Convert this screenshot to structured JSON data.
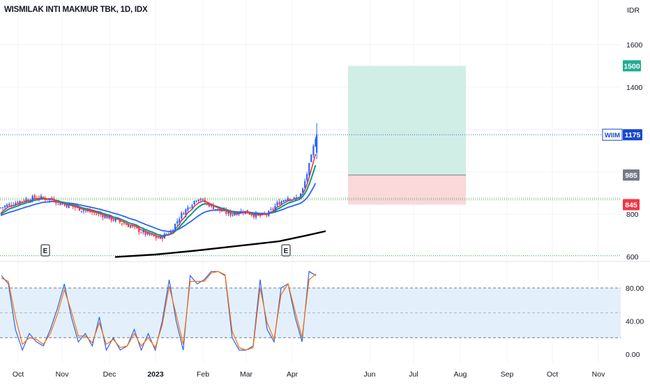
{
  "header": {
    "title": "WISMILAK INTI MAKMUR TBK, 1D, IDX"
  },
  "price_axis": {
    "currency": "IDR",
    "ticks": [
      "1600",
      "1400",
      "800",
      "600"
    ]
  },
  "price_labels": {
    "target": "1500",
    "symbol": "WIIM",
    "last": "1175",
    "entry": "985",
    "stop": "845"
  },
  "oscillator_axis": {
    "ticks": [
      "80.00",
      "40.00",
      "0.00"
    ]
  },
  "time_axis": {
    "ticks": [
      "Oct",
      "Nov",
      "Dec",
      "2023",
      "Feb",
      "Mar",
      "Apr",
      "Jun",
      "Jul",
      "Aug",
      "Sep",
      "Oct",
      "Nov"
    ]
  },
  "event_markers": [
    "E",
    "E"
  ],
  "colors": {
    "up": "#2962ff",
    "down": "#f23645",
    "ema_fast": "#f23645",
    "ema_mid": "#089981",
    "ema_slow": "#2962ff",
    "ma_long": "#000000",
    "target_zone": "#d1eee6",
    "stop_zone": "#fbd8da",
    "target_badge": "#22ab94",
    "stop_badge": "#f23645",
    "entry_badge": "#787b86",
    "osc_k": "#2962ff",
    "osc_d": "#ff6d00",
    "osc_band": "#e3f0fc"
  },
  "chart_data": [
    {
      "type": "candlestick",
      "title": "WISMILAK INTI MAKMUR TBK, 1D, IDX",
      "ylabel": "IDR",
      "ylim": [
        590,
        1660
      ],
      "x_range": [
        "2022-09-20",
        "2023-11-30"
      ],
      "last_price": 1175,
      "position": {
        "target": 1500,
        "entry": 985,
        "stop": 845
      },
      "horizontal_levels": [
        1175,
        875,
        875,
        605
      ],
      "samples": [
        {
          "date": "2022-09-20",
          "close": 830
        },
        {
          "date": "2022-10-03",
          "close": 860
        },
        {
          "date": "2022-10-15",
          "close": 880
        },
        {
          "date": "2022-10-27",
          "close": 870
        },
        {
          "date": "2022-11-01",
          "close": 850
        },
        {
          "date": "2022-11-10",
          "close": 835
        },
        {
          "date": "2022-11-20",
          "close": 815
        },
        {
          "date": "2022-12-01",
          "close": 795
        },
        {
          "date": "2022-12-10",
          "close": 770
        },
        {
          "date": "2022-12-20",
          "close": 745
        },
        {
          "date": "2023-01-01",
          "close": 705
        },
        {
          "date": "2023-01-10",
          "close": 685
        },
        {
          "date": "2023-01-18",
          "close": 720
        },
        {
          "date": "2023-01-25",
          "close": 795
        },
        {
          "date": "2023-02-01",
          "close": 845
        },
        {
          "date": "2023-02-06",
          "close": 880
        },
        {
          "date": "2023-02-10",
          "close": 860
        },
        {
          "date": "2023-02-20",
          "close": 820
        },
        {
          "date": "2023-03-01",
          "close": 800
        },
        {
          "date": "2023-03-10",
          "close": 815
        },
        {
          "date": "2023-03-20",
          "close": 790
        },
        {
          "date": "2023-03-27",
          "close": 800
        },
        {
          "date": "2023-04-03",
          "close": 850
        },
        {
          "date": "2023-04-10",
          "close": 880
        },
        {
          "date": "2023-04-15",
          "close": 870
        },
        {
          "date": "2023-04-20",
          "close": 900
        },
        {
          "date": "2023-04-24",
          "close": 1000
        },
        {
          "date": "2023-04-27",
          "close": 1080
        },
        {
          "date": "2023-04-30",
          "close": 1175
        }
      ]
    },
    {
      "type": "line",
      "title": "",
      "ylim": [
        -5,
        105
      ],
      "upper_band": 80,
      "lower_band": 20,
      "mid_line": 50,
      "series": [
        {
          "values": [
            95,
            85,
            30,
            5,
            25,
            15,
            10,
            30,
            55,
            85,
            45,
            15,
            25,
            10,
            45,
            5,
            20,
            5,
            10,
            30,
            5,
            25,
            5,
            40,
            90,
            40,
            5,
            95,
            85,
            90,
            100,
            100,
            95,
            20,
            5,
            5,
            10,
            90,
            30,
            15,
            80,
            85,
            45,
            15,
            100,
            95
          ]
        },
        {
          "values": [
            92,
            88,
            45,
            12,
            20,
            18,
            12,
            25,
            48,
            78,
            52,
            22,
            22,
            14,
            38,
            12,
            18,
            8,
            10,
            25,
            10,
            20,
            8,
            35,
            82,
            48,
            12,
            88,
            88,
            88,
            98,
            100,
            96,
            28,
            8,
            5,
            8,
            80,
            38,
            18,
            72,
            85,
            52,
            20,
            90,
            97
          ]
        }
      ]
    }
  ]
}
